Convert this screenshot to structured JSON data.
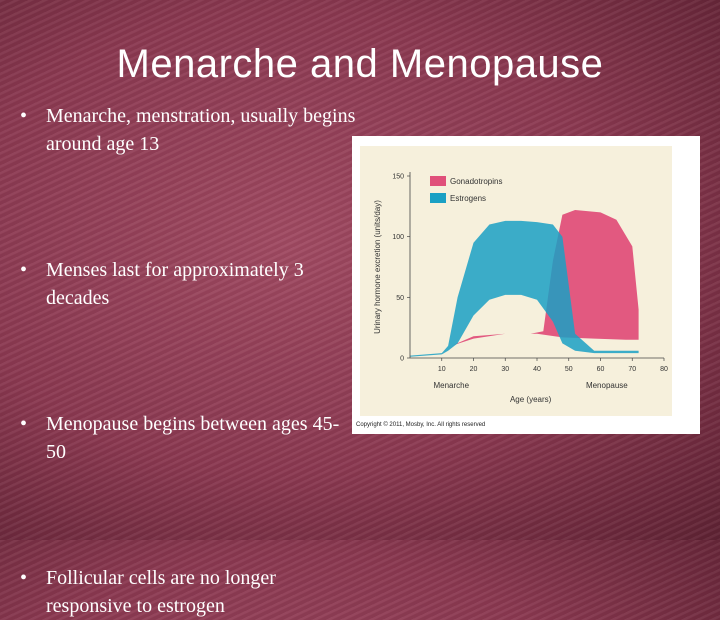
{
  "slide": {
    "title": "Menarche and Menopause",
    "bullets": [
      "Menarche, menstration, usually begins around age 13",
      "Menses last for approximately 3 decades",
      "Menopause begins between ages 45-50",
      "Follicular cells are no longer responsive to estrogen"
    ],
    "bullet_glyph": "•"
  },
  "chart_data": {
    "type": "area",
    "xlabel": "Age (years)",
    "ylabel": "Urinary hormone excretion (units/day)",
    "xlim": [
      0,
      80
    ],
    "ylim": [
      0,
      150
    ],
    "x_ticks": [
      "10",
      "20",
      "30",
      "40",
      "50",
      "60",
      "70",
      "80"
    ],
    "y_ticks": [
      "0",
      "50",
      "100",
      "150"
    ],
    "grid": false,
    "legend": "top-right",
    "annotations": [
      "Menarche",
      "Menopause"
    ],
    "copyright": "Copyright © 2011, Mosby, Inc. All rights reserved",
    "series": [
      {
        "name": "Gonadotropins",
        "color": "#e0507a",
        "x": [
          0,
          10,
          13,
          20,
          30,
          38,
          42,
          45,
          48,
          52,
          60,
          65,
          70,
          72,
          72,
          68,
          58,
          48,
          40,
          30,
          20,
          13,
          10,
          0
        ],
        "upper": [
          2,
          4,
          10,
          18,
          20,
          20,
          22,
          80,
          118,
          122,
          120,
          114,
          92,
          40,
          15,
          15,
          16,
          17,
          20,
          20,
          16,
          10,
          4,
          2
        ],
        "lower": []
      },
      {
        "name": "Estrogens",
        "color": "#1aa0c4",
        "x": [
          0,
          10,
          12,
          15,
          20,
          25,
          30,
          35,
          40,
          45,
          48,
          52,
          58,
          65,
          72,
          72,
          65,
          58,
          52,
          48,
          45,
          40,
          35,
          30,
          25,
          20,
          15,
          12,
          10,
          0
        ],
        "upper": [
          2,
          4,
          10,
          50,
          95,
          110,
          113,
          113,
          112,
          110,
          100,
          20,
          6,
          6,
          6,
          4,
          4,
          4,
          6,
          12,
          30,
          48,
          52,
          52,
          48,
          35,
          12,
          6,
          3,
          1
        ],
        "lower": []
      }
    ]
  }
}
